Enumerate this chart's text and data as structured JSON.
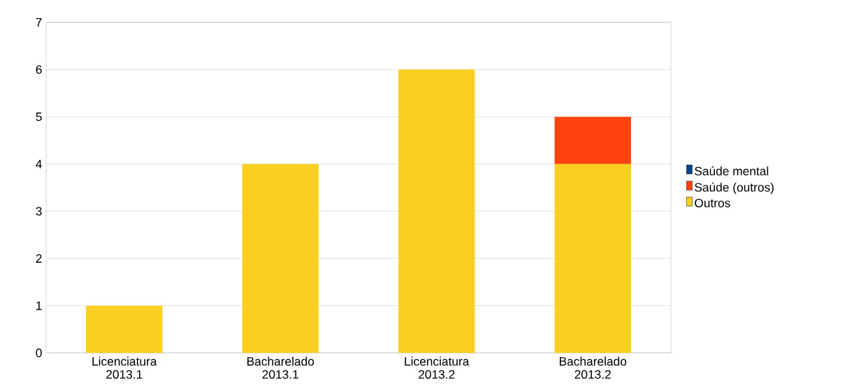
{
  "chart_data": {
    "type": "bar",
    "stacked": true,
    "categories": [
      "Licenciatura 2013.1",
      "Bacharelado 2013.1",
      "Licenciatura 2013.2",
      "Bacharelado 2013.2"
    ],
    "series": [
      {
        "name": "Outros",
        "color": "#f9d021",
        "values": [
          1,
          4,
          6,
          4
        ]
      },
      {
        "name": "Saúde (outros)",
        "color": "#ff420e",
        "values": [
          0,
          0,
          0,
          1
        ]
      },
      {
        "name": "Saúde mental",
        "color": "#004586",
        "values": [
          0,
          0,
          0,
          0
        ]
      }
    ],
    "ylim": [
      0,
      7
    ],
    "yticks": [
      0,
      1,
      2,
      3,
      4,
      5,
      6,
      7
    ],
    "grid": "y",
    "legend": "right"
  }
}
